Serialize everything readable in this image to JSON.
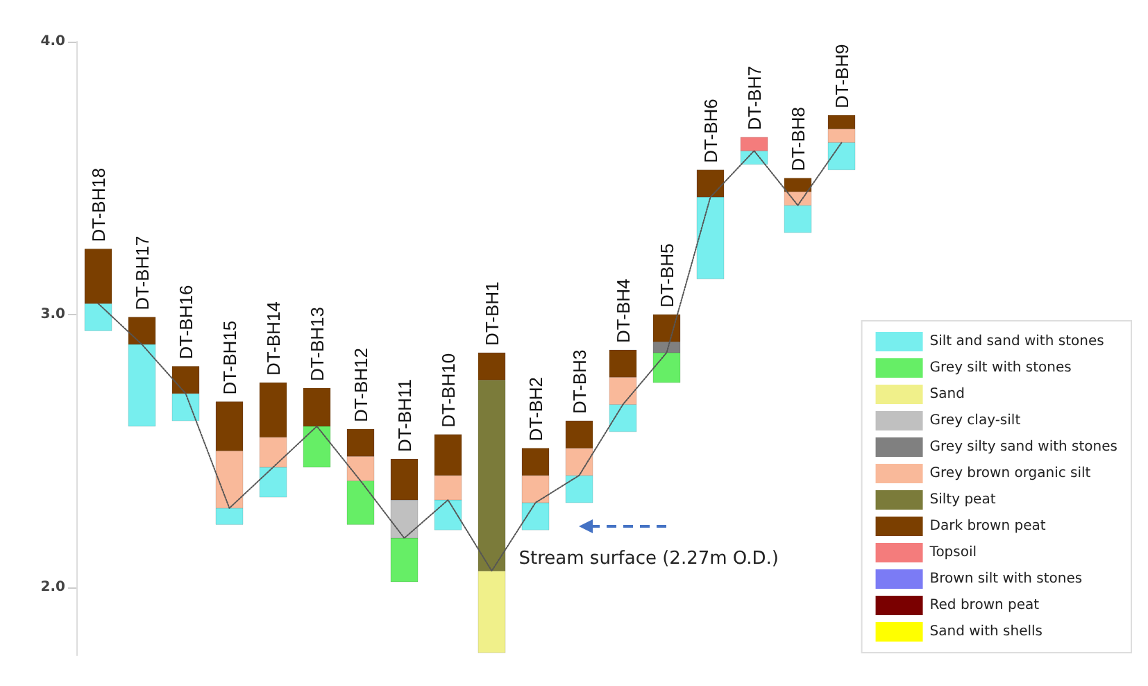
{
  "chart_data": {
    "type": "bar",
    "categories": [
      "DT-BH18",
      "DT-BH17",
      "DT-BH16",
      "DT-BH15",
      "DT-BH14",
      "DT-BH13",
      "DT-BH12",
      "DT-BH11",
      "DT-BH10",
      "DT-BH1",
      "DT-BH2",
      "DT-BH3",
      "DT-BH4",
      "DT-BH5",
      "DT-BH6",
      "DT-BH7",
      "DT-BH8",
      "DT-BH9"
    ],
    "series": [
      {
        "name": "Silt and sand with stones",
        "color": "#77eeee",
        "values": [
          0.1,
          0.3,
          0.1,
          0.06,
          0.11,
          null,
          null,
          null,
          0.11,
          null,
          0.1,
          0.1,
          0.1,
          null,
          0.3,
          0.05,
          0.1,
          0.1
        ],
        "base": [
          2.94,
          2.59,
          2.61,
          2.23,
          2.33,
          null,
          null,
          null,
          2.21,
          null,
          2.21,
          2.31,
          2.57,
          null,
          3.13,
          3.55,
          3.3,
          3.53
        ]
      },
      {
        "name": "Grey silt with stones",
        "color": "#66ee66",
        "values": [
          null,
          null,
          null,
          null,
          null,
          0.15,
          0.16,
          0.16,
          null,
          null,
          null,
          null,
          null,
          0.11,
          null,
          null,
          null,
          null
        ],
        "base": [
          null,
          null,
          null,
          null,
          null,
          2.44,
          2.23,
          2.02,
          null,
          null,
          null,
          null,
          null,
          2.75,
          null,
          null,
          null,
          null
        ]
      },
      {
        "name": "Sand",
        "color": "#f0f08a",
        "values": [
          null,
          null,
          null,
          null,
          null,
          null,
          null,
          null,
          null,
          0.3,
          null,
          null,
          null,
          null,
          null,
          null,
          null,
          null
        ],
        "base": [
          null,
          null,
          null,
          null,
          null,
          null,
          null,
          null,
          null,
          1.76,
          null,
          null,
          null,
          null,
          null,
          null,
          null,
          null
        ]
      },
      {
        "name": "Grey clay-silt",
        "color": "#c0c0c0",
        "values": [
          null,
          null,
          null,
          null,
          null,
          null,
          null,
          0.14,
          null,
          null,
          null,
          null,
          null,
          null,
          null,
          null,
          null,
          null
        ],
        "base": [
          null,
          null,
          null,
          null,
          null,
          null,
          null,
          2.18,
          null,
          null,
          null,
          null,
          null,
          null,
          null,
          null,
          null,
          null
        ]
      },
      {
        "name": "Grey silty sand with stones",
        "color": "#808080",
        "values": [
          null,
          null,
          null,
          null,
          null,
          null,
          null,
          null,
          null,
          null,
          null,
          null,
          null,
          0.04,
          null,
          null,
          null,
          null
        ],
        "base": [
          null,
          null,
          null,
          null,
          null,
          null,
          null,
          null,
          null,
          null,
          null,
          null,
          null,
          2.86,
          null,
          null,
          null,
          null
        ]
      },
      {
        "name": "Grey brown organic silt",
        "color": "#f9b99a",
        "values": [
          null,
          null,
          null,
          0.21,
          0.11,
          null,
          0.09,
          null,
          0.09,
          null,
          0.1,
          0.1,
          0.1,
          null,
          null,
          null,
          0.05,
          0.05
        ],
        "base": [
          null,
          null,
          null,
          2.29,
          2.44,
          null,
          2.39,
          null,
          2.32,
          null,
          2.31,
          2.41,
          2.67,
          null,
          null,
          null,
          3.4,
          3.63
        ]
      },
      {
        "name": "Silty peat",
        "color": "#7b7b3a",
        "values": [
          null,
          null,
          null,
          null,
          null,
          null,
          null,
          null,
          null,
          0.7,
          null,
          null,
          null,
          null,
          null,
          null,
          null,
          null
        ],
        "base": [
          null,
          null,
          null,
          null,
          null,
          null,
          null,
          null,
          null,
          2.06,
          null,
          null,
          null,
          null,
          null,
          null,
          null,
          null
        ]
      },
      {
        "name": "Dark brown peat",
        "color": "#7b3f00",
        "values": [
          0.2,
          0.1,
          0.1,
          0.18,
          0.2,
          0.14,
          0.1,
          0.15,
          0.15,
          0.1,
          0.1,
          0.1,
          0.1,
          0.1,
          0.1,
          null,
          0.05,
          0.05
        ],
        "base": [
          3.04,
          2.89,
          2.71,
          2.5,
          2.55,
          2.59,
          2.48,
          2.32,
          2.41,
          2.76,
          2.41,
          2.51,
          2.77,
          2.9,
          3.43,
          null,
          3.45,
          3.68
        ]
      },
      {
        "name": "Topsoil",
        "color": "#f47c7c",
        "values": [
          null,
          null,
          null,
          null,
          null,
          null,
          null,
          null,
          null,
          null,
          null,
          null,
          null,
          null,
          null,
          0.05,
          null,
          null
        ],
        "base": [
          null,
          null,
          null,
          null,
          null,
          null,
          null,
          null,
          null,
          null,
          null,
          null,
          null,
          null,
          null,
          3.6,
          null,
          null
        ]
      },
      {
        "name": "Brown silt with stones",
        "color": "#7b7bf5",
        "values": [
          null,
          null,
          null,
          null,
          null,
          null,
          null,
          null,
          null,
          null,
          null,
          null,
          null,
          null,
          null,
          null,
          null,
          null
        ]
      },
      {
        "name": "Red brown peat",
        "color": "#7a0000",
        "values": [
          null,
          null,
          null,
          null,
          null,
          null,
          null,
          null,
          null,
          null,
          null,
          null,
          null,
          null,
          null,
          null,
          null,
          null
        ]
      },
      {
        "name": "Sand with shells",
        "color": "#ffff00",
        "values": [
          null,
          null,
          null,
          null,
          null,
          null,
          null,
          null,
          null,
          null,
          null,
          null,
          null,
          null,
          null,
          null,
          null,
          null
        ]
      },
      {
        "type": "line",
        "color": "#555555",
        "line_style": "dotted",
        "marker": "none",
        "values": [
          3.04,
          2.89,
          2.71,
          2.29,
          2.44,
          2.59,
          2.39,
          2.18,
          2.32,
          2.06,
          2.31,
          2.41,
          2.67,
          2.86,
          3.43,
          3.6,
          3.4,
          3.63
        ]
      }
    ],
    "ylim": [
      1.75,
      4.0
    ],
    "yticks": [
      {
        "value": 2,
        "label": "2.0"
      },
      {
        "value": 3,
        "label": "3.0"
      },
      {
        "value": 4,
        "label": "4.0"
      }
    ],
    "grid": false,
    "legend": "bottom right",
    "tick_labels": "y",
    "annotations": [
      "Stream surface (2.27m O.D.)"
    ]
  }
}
